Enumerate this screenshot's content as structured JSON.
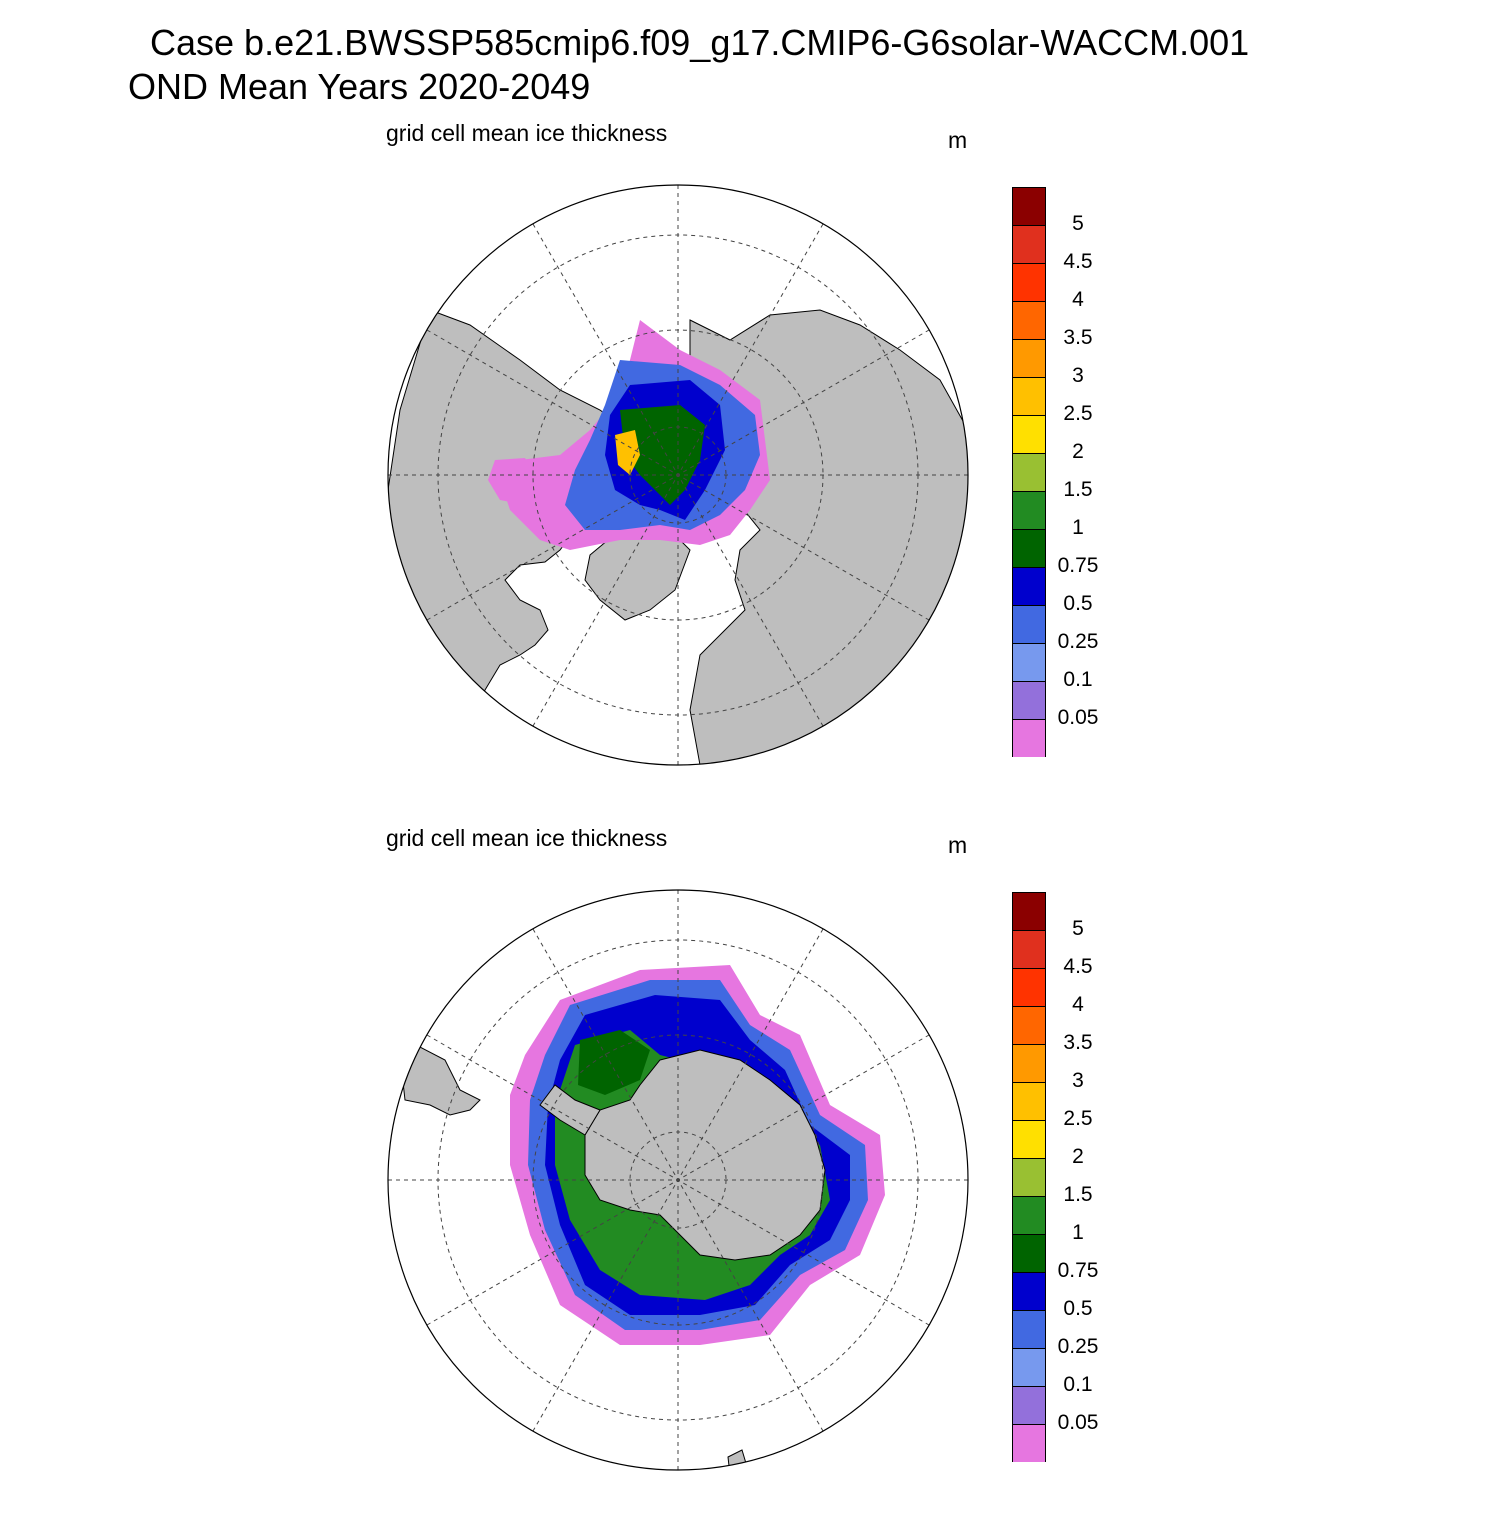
{
  "title": {
    "line1": "Case b.e21.BWSSP585cmip6.f09_g17.CMIP6-G6solar-WACCM.001",
    "line2": "OND Mean   Years 2020-2049"
  },
  "panels": [
    {
      "id": "north",
      "subtitle": "grid cell mean ice thickness",
      "units": "m"
    },
    {
      "id": "south",
      "subtitle": "grid cell mean ice thickness",
      "units": "m"
    }
  ],
  "colorbar": {
    "labels": [
      "5",
      "4.5",
      "4",
      "3.5",
      "3",
      "2.5",
      "2",
      "1.5",
      "1",
      "0.75",
      "0.5",
      "0.25",
      "0.1",
      "0.05"
    ],
    "colors": [
      "#8B0000",
      "#E0301E",
      "#FF3300",
      "#FF6600",
      "#FF9900",
      "#FFC000",
      "#FFE000",
      "#99C032",
      "#228B22",
      "#006400",
      "#0000CD",
      "#4169E1",
      "#7799EE",
      "#9370DB",
      "#E676E0"
    ]
  },
  "map_colors": {
    "land": "#BEBEBE",
    "ocean": "#FFFFFF"
  }
}
